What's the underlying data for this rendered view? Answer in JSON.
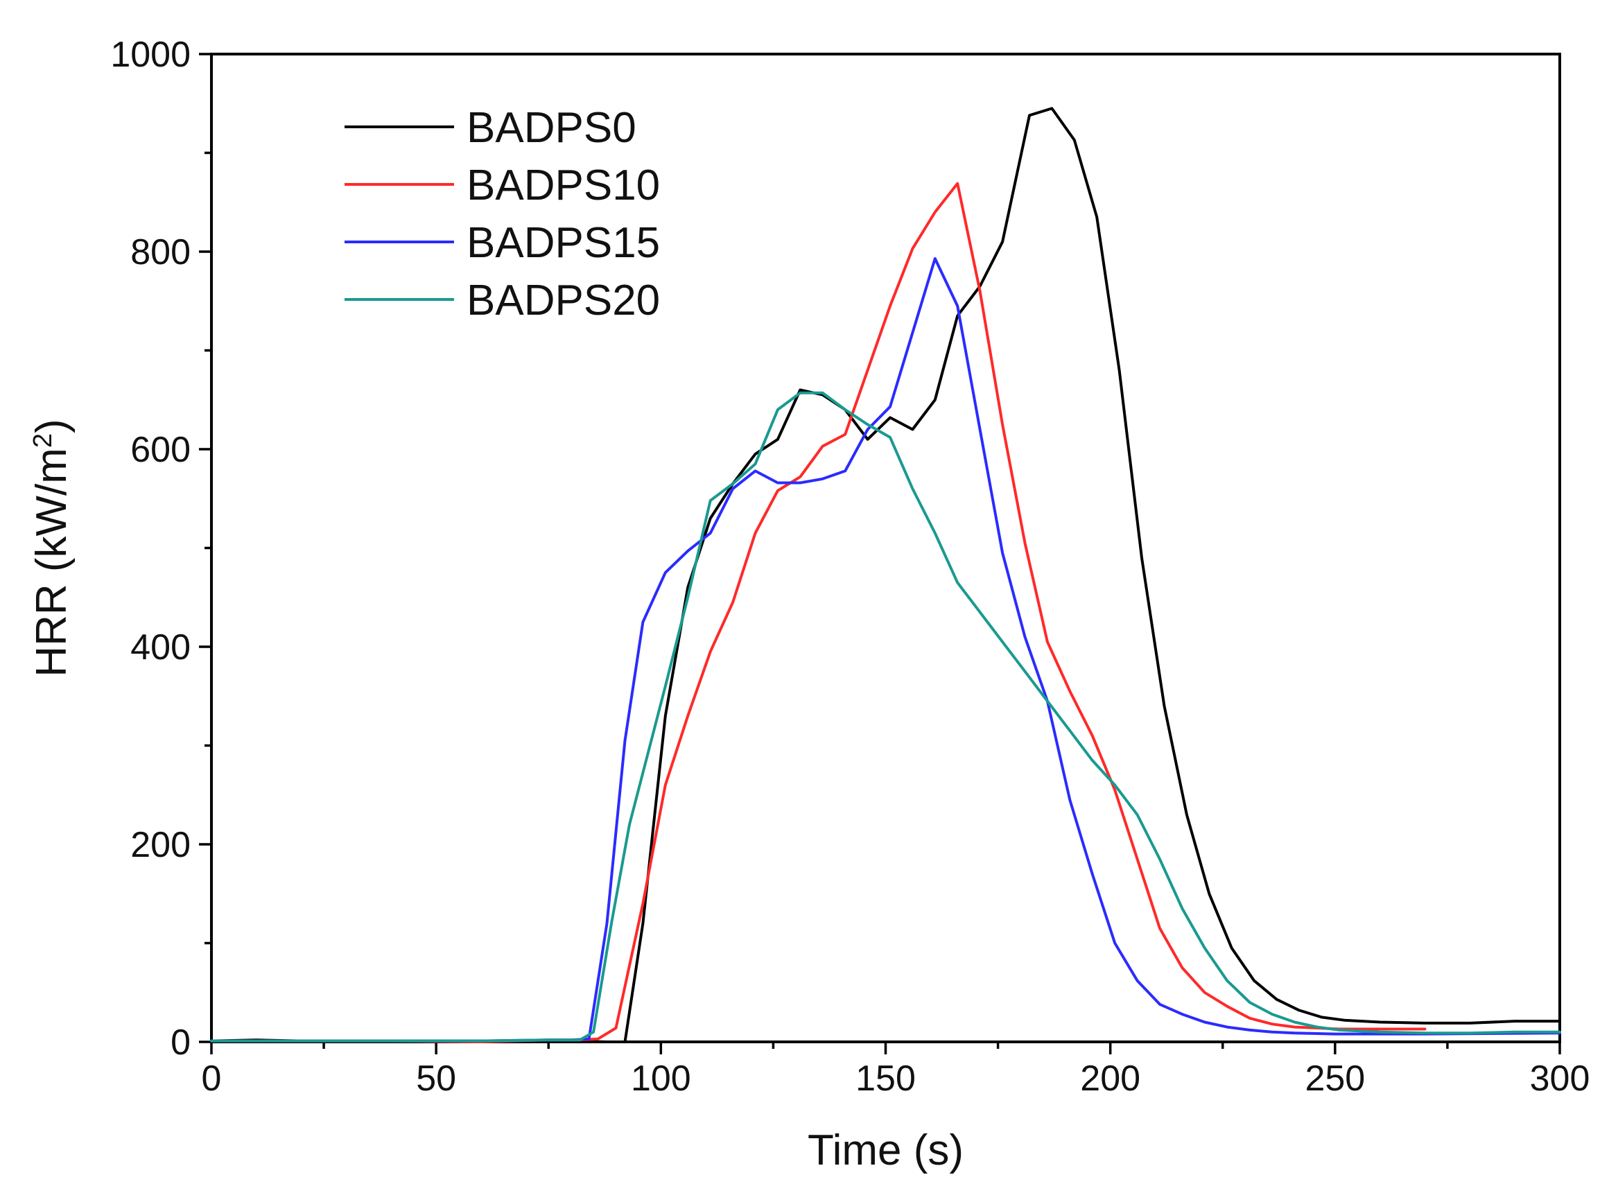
{
  "chart_data": {
    "type": "line",
    "title": "",
    "xlabel": "Time (s)",
    "ylabel_main": "HRR (kW/m",
    "ylabel_sup": "2",
    "ylabel_close": ")",
    "xlim": [
      0,
      300
    ],
    "ylim": [
      0,
      1000
    ],
    "xticks": [
      0,
      50,
      100,
      150,
      200,
      250,
      300
    ],
    "yticks": [
      0,
      200,
      400,
      600,
      800,
      1000
    ],
    "grid": false,
    "legend_position": "top-left",
    "series": [
      {
        "name": "BADPS0",
        "color": "#000000",
        "points": [
          [
            0,
            1
          ],
          [
            10,
            2
          ],
          [
            20,
            1
          ],
          [
            40,
            1
          ],
          [
            60,
            1
          ],
          [
            80,
            1
          ],
          [
            88,
            0
          ],
          [
            92,
            0
          ],
          [
            96,
            120
          ],
          [
            101,
            330
          ],
          [
            106,
            460
          ],
          [
            111,
            530
          ],
          [
            116,
            565
          ],
          [
            121,
            595
          ],
          [
            126,
            610
          ],
          [
            131,
            660
          ],
          [
            136,
            655
          ],
          [
            141,
            640
          ],
          [
            146,
            610
          ],
          [
            151,
            632
          ],
          [
            156,
            620
          ],
          [
            161,
            650
          ],
          [
            166,
            735
          ],
          [
            171,
            765
          ],
          [
            176,
            810
          ],
          [
            182,
            938
          ],
          [
            187,
            945
          ],
          [
            192,
            913
          ],
          [
            197,
            835
          ],
          [
            202,
            680
          ],
          [
            207,
            490
          ],
          [
            212,
            340
          ],
          [
            217,
            230
          ],
          [
            222,
            150
          ],
          [
            227,
            95
          ],
          [
            232,
            62
          ],
          [
            237,
            43
          ],
          [
            242,
            32
          ],
          [
            247,
            25
          ],
          [
            252,
            22
          ],
          [
            260,
            20
          ],
          [
            270,
            19
          ],
          [
            280,
            19
          ],
          [
            290,
            21
          ],
          [
            300,
            21
          ]
        ]
      },
      {
        "name": "BADPS10",
        "color": "#ff2a2a",
        "points": [
          [
            0,
            1
          ],
          [
            20,
            1
          ],
          [
            40,
            1
          ],
          [
            60,
            0
          ],
          [
            75,
            2
          ],
          [
            82,
            2
          ],
          [
            86,
            3
          ],
          [
            90,
            14
          ],
          [
            96,
            140
          ],
          [
            101,
            260
          ],
          [
            106,
            330
          ],
          [
            111,
            395
          ],
          [
            116,
            445
          ],
          [
            121,
            515
          ],
          [
            126,
            558
          ],
          [
            131,
            572
          ],
          [
            136,
            603
          ],
          [
            141,
            615
          ],
          [
            146,
            680
          ],
          [
            151,
            745
          ],
          [
            156,
            803
          ],
          [
            161,
            840
          ],
          [
            166,
            869
          ],
          [
            171,
            760
          ],
          [
            176,
            625
          ],
          [
            181,
            505
          ],
          [
            186,
            405
          ],
          [
            191,
            355
          ],
          [
            196,
            310
          ],
          [
            201,
            255
          ],
          [
            206,
            185
          ],
          [
            211,
            115
          ],
          [
            216,
            75
          ],
          [
            221,
            50
          ],
          [
            226,
            36
          ],
          [
            231,
            24
          ],
          [
            236,
            18
          ],
          [
            241,
            15
          ],
          [
            246,
            14
          ],
          [
            251,
            13
          ],
          [
            260,
            13
          ],
          [
            270,
            13
          ]
        ]
      },
      {
        "name": "BADPS15",
        "color": "#2b2bff",
        "points": [
          [
            0,
            1
          ],
          [
            20,
            1
          ],
          [
            40,
            1
          ],
          [
            60,
            1
          ],
          [
            75,
            2
          ],
          [
            80,
            2
          ],
          [
            84,
            3
          ],
          [
            88,
            120
          ],
          [
            92,
            305
          ],
          [
            96,
            425
          ],
          [
            101,
            475
          ],
          [
            106,
            497
          ],
          [
            111,
            515
          ],
          [
            116,
            560
          ],
          [
            121,
            578
          ],
          [
            126,
            566
          ],
          [
            131,
            566
          ],
          [
            136,
            570
          ],
          [
            141,
            578
          ],
          [
            146,
            620
          ],
          [
            151,
            643
          ],
          [
            156,
            718
          ],
          [
            161,
            793
          ],
          [
            166,
            745
          ],
          [
            171,
            620
          ],
          [
            176,
            495
          ],
          [
            181,
            410
          ],
          [
            186,
            345
          ],
          [
            191,
            245
          ],
          [
            196,
            170
          ],
          [
            201,
            100
          ],
          [
            206,
            62
          ],
          [
            211,
            38
          ],
          [
            216,
            28
          ],
          [
            221,
            20
          ],
          [
            226,
            15
          ],
          [
            231,
            12
          ],
          [
            236,
            10
          ],
          [
            241,
            9
          ],
          [
            250,
            8
          ],
          [
            270,
            8
          ],
          [
            300,
            9
          ]
        ]
      },
      {
        "name": "BADPS20",
        "color": "#1a9a90",
        "points": [
          [
            0,
            1
          ],
          [
            20,
            1
          ],
          [
            40,
            1
          ],
          [
            60,
            1
          ],
          [
            75,
            2
          ],
          [
            82,
            2
          ],
          [
            85,
            10
          ],
          [
            89,
            120
          ],
          [
            93,
            220
          ],
          [
            97,
            290
          ],
          [
            101,
            360
          ],
          [
            106,
            450
          ],
          [
            111,
            548
          ],
          [
            116,
            565
          ],
          [
            121,
            585
          ],
          [
            126,
            640
          ],
          [
            131,
            657
          ],
          [
            136,
            657
          ],
          [
            141,
            640
          ],
          [
            146,
            625
          ],
          [
            151,
            612
          ],
          [
            156,
            560
          ],
          [
            161,
            515
          ],
          [
            166,
            465
          ],
          [
            171,
            435
          ],
          [
            176,
            405
          ],
          [
            181,
            375
          ],
          [
            186,
            345
          ],
          [
            191,
            315
          ],
          [
            196,
            285
          ],
          [
            201,
            260
          ],
          [
            206,
            230
          ],
          [
            211,
            185
          ],
          [
            216,
            135
          ],
          [
            221,
            95
          ],
          [
            226,
            62
          ],
          [
            231,
            40
          ],
          [
            236,
            28
          ],
          [
            241,
            20
          ],
          [
            246,
            15
          ],
          [
            251,
            12
          ],
          [
            260,
            10
          ],
          [
            270,
            9
          ],
          [
            280,
            9
          ],
          [
            290,
            10
          ],
          [
            300,
            10
          ]
        ]
      }
    ]
  }
}
